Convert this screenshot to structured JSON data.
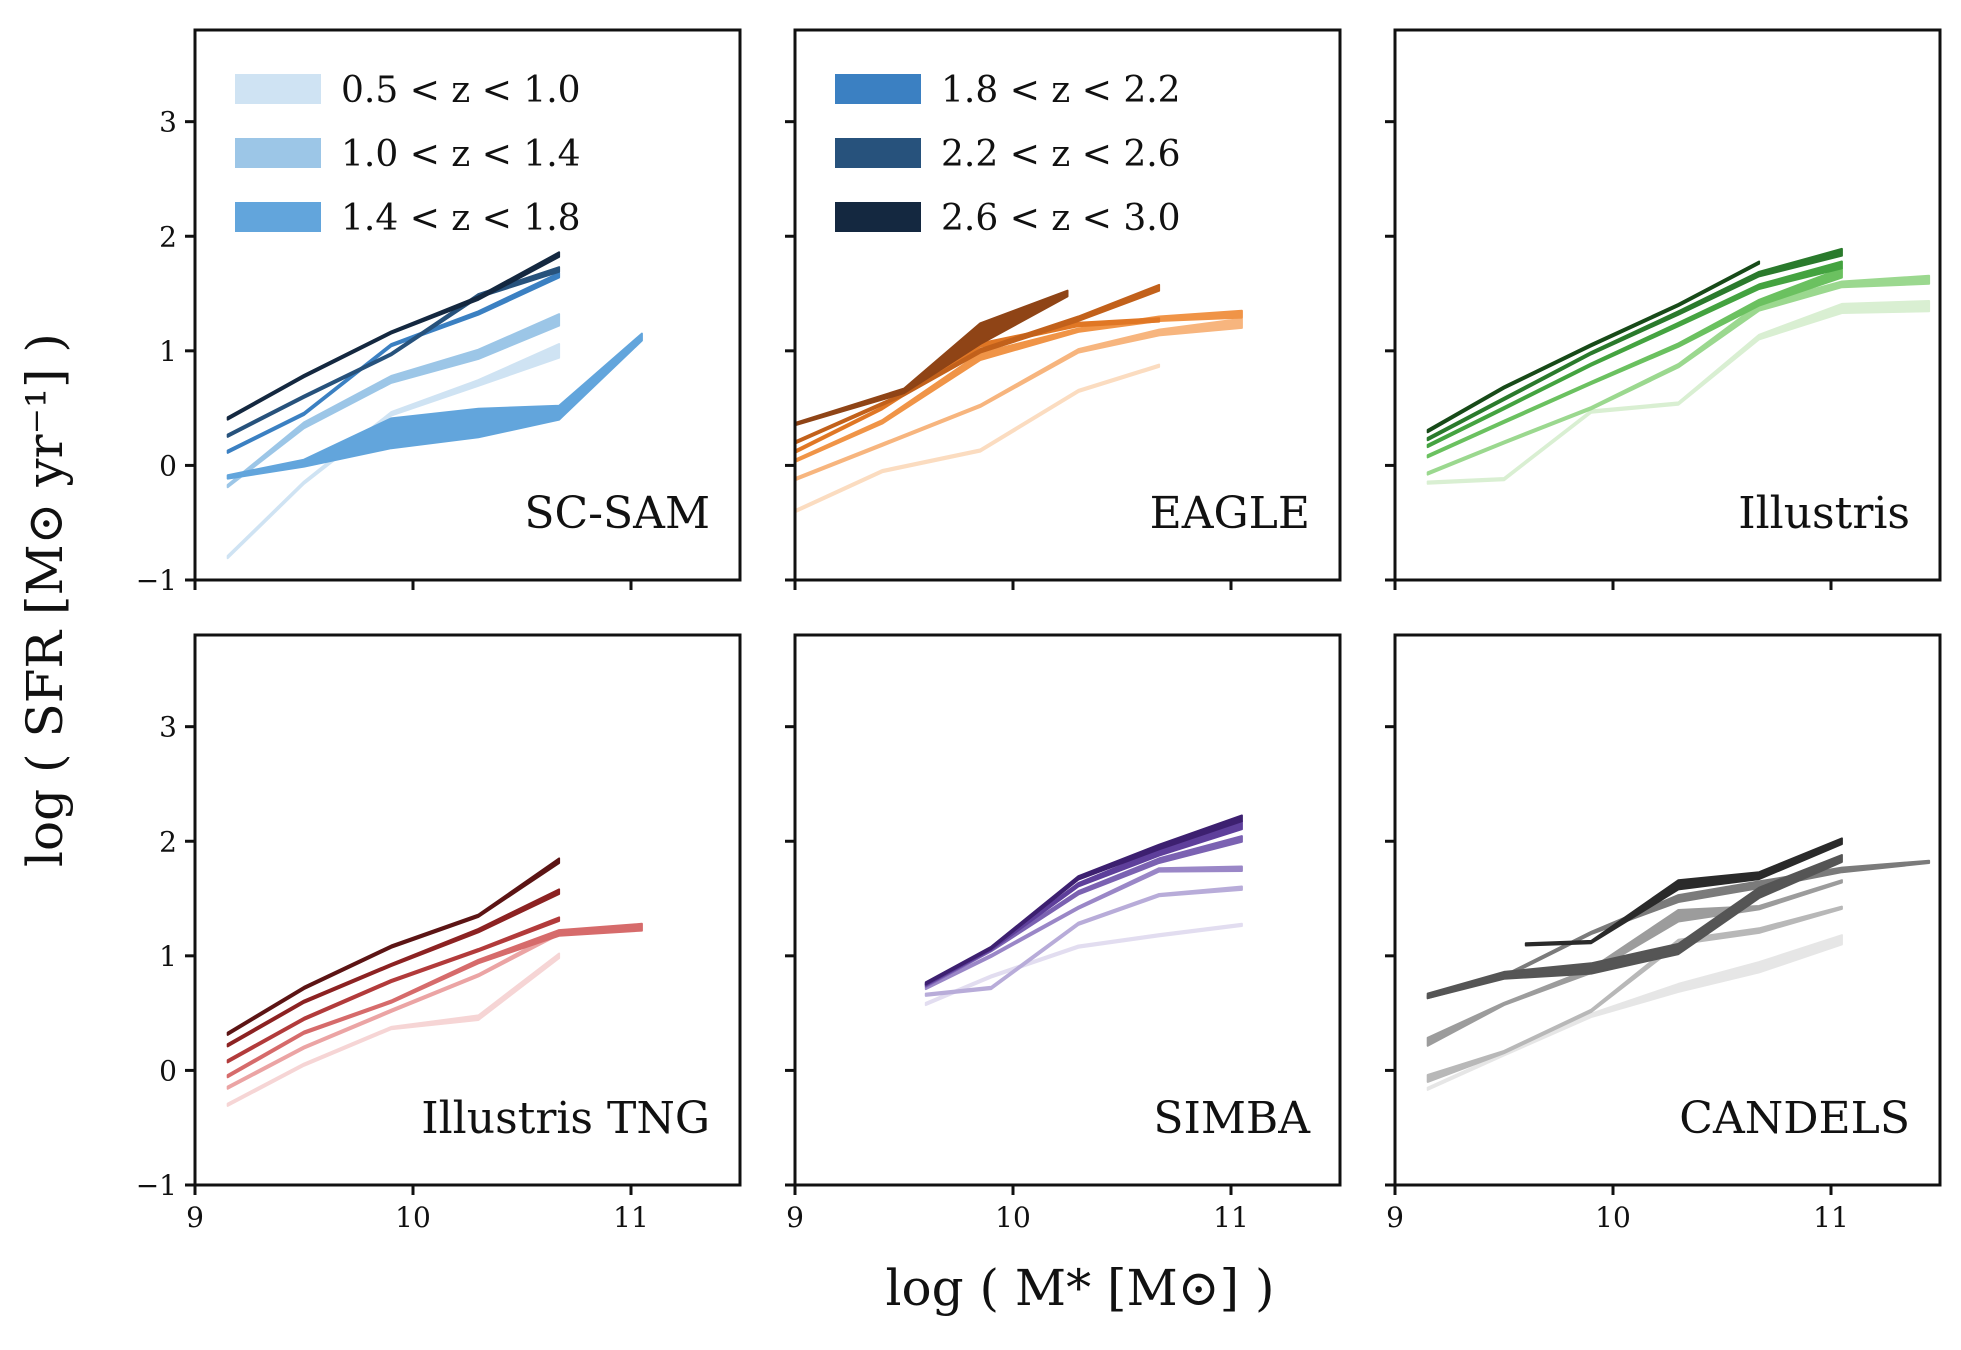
{
  "figure": {
    "xlabel": "log ( M* [M⊙] )",
    "ylabel": "log ( SFR [M⊙ yr⁻¹] )"
  },
  "legend": {
    "left": [
      {
        "label": "0.5 < z < 1.0",
        "color": "#cfe3f3"
      },
      {
        "label": "1.0 < z < 1.4",
        "color": "#9cc6e7"
      },
      {
        "label": "1.4 < z < 1.8",
        "color": "#62a5dc"
      }
    ],
    "right": [
      {
        "label": "1.8 < z < 2.2",
        "color": "#3b80c2"
      },
      {
        "label": "2.2 < z < 2.6",
        "color": "#27527c"
      },
      {
        "label": "2.6 < z < 3.0",
        "color": "#142840"
      }
    ]
  },
  "chart_data": [
    {
      "type": "line",
      "title": "SC-SAM",
      "xlabel": "",
      "ylabel": "log ( SFR [M⊙ yr⁻¹] )",
      "xlim": [
        9,
        11.5
      ],
      "ylim": [
        -1,
        3.8
      ],
      "xticks": [
        "9",
        "10",
        "11"
      ],
      "yticks": [
        "−1",
        "0",
        "1",
        "2",
        "3"
      ],
      "series": [
        {
          "name": "0.5 < z < 1.0",
          "color": "#cfe3f3",
          "x": [
            9.15,
            9.5,
            9.9,
            10.3,
            10.67
          ],
          "y": [
            -0.8,
            -0.15,
            0.45,
            0.72,
            1.0
          ],
          "width": [
            0.02,
            0.02,
            0.03,
            0.05,
            0.12
          ]
        },
        {
          "name": "1.0 < z < 1.4",
          "color": "#9cc6e7",
          "x": [
            9.15,
            9.5,
            9.9,
            10.3,
            10.67
          ],
          "y": [
            -0.18,
            0.35,
            0.75,
            0.97,
            1.27
          ],
          "width": [
            0.02,
            0.05,
            0.06,
            0.08,
            0.1
          ]
        },
        {
          "name": "1.4 < z < 1.8",
          "color": "#62a5dc",
          "x": [
            9.15,
            9.5,
            9.9,
            10.3,
            10.67,
            11.05
          ],
          "y": [
            -0.1,
            0.02,
            0.28,
            0.37,
            0.46,
            1.12
          ],
          "width": [
            0.03,
            0.06,
            0.26,
            0.25,
            0.12,
            0.06
          ]
        },
        {
          "name": "1.8 < z < 2.2",
          "color": "#3b80c2",
          "x": [
            9.15,
            9.5,
            9.9,
            10.3,
            10.67
          ],
          "y": [
            0.12,
            0.45,
            1.05,
            1.33,
            1.66
          ],
          "width": [
            0.02,
            0.02,
            0.02,
            0.03,
            0.04
          ]
        },
        {
          "name": "2.2 < z < 2.6",
          "color": "#27527c",
          "x": [
            9.15,
            9.5,
            9.9,
            10.3,
            10.67
          ],
          "y": [
            0.26,
            0.6,
            0.97,
            1.48,
            1.71
          ],
          "width": [
            0.02,
            0.02,
            0.02,
            0.03,
            0.04
          ]
        },
        {
          "name": "2.6 < z < 3.0",
          "color": "#142840",
          "x": [
            9.15,
            9.5,
            9.9,
            10.3,
            10.67
          ],
          "y": [
            0.41,
            0.78,
            1.16,
            1.46,
            1.84
          ],
          "width": [
            0.02,
            0.02,
            0.02,
            0.03,
            0.04
          ]
        }
      ]
    },
    {
      "type": "line",
      "title": "EAGLE",
      "xlabel": "",
      "ylabel": "",
      "xlim": [
        9,
        11.5
      ],
      "ylim": [
        -1,
        3.8
      ],
      "xticks": [
        "9",
        "10",
        "11"
      ],
      "yticks": [
        "−1",
        "0",
        "1",
        "2",
        "3"
      ],
      "series": [
        {
          "name": "0.5 < z < 1.0",
          "color": "#fbdcc0",
          "x": [
            9.0,
            9.4,
            9.85,
            10.3,
            10.67
          ],
          "y": [
            -0.4,
            -0.05,
            0.13,
            0.65,
            0.87
          ],
          "width": [
            0.02,
            0.02,
            0.02,
            0.02,
            0.02
          ]
        },
        {
          "name": "1.0 < z < 1.4",
          "color": "#f7b57e",
          "x": [
            9.0,
            9.4,
            9.85,
            10.3,
            10.67,
            11.05
          ],
          "y": [
            -0.12,
            0.18,
            0.52,
            1.0,
            1.16,
            1.24
          ],
          "width": [
            0.02,
            0.02,
            0.02,
            0.03,
            0.05,
            0.08
          ]
        },
        {
          "name": "1.4 < z < 1.8",
          "color": "#f09447",
          "x": [
            9.0,
            9.4,
            9.85,
            10.3,
            10.67,
            11.05
          ],
          "y": [
            0.04,
            0.38,
            0.95,
            1.18,
            1.28,
            1.32
          ],
          "width": [
            0.02,
            0.03,
            0.06,
            0.03,
            0.04,
            0.06
          ]
        },
        {
          "name": "1.8 < z < 2.2",
          "color": "#e07725",
          "x": [
            9.0,
            9.4,
            9.85,
            10.3,
            10.67
          ],
          "y": [
            0.12,
            0.5,
            1.05,
            1.23,
            1.27
          ],
          "width": [
            0.02,
            0.02,
            0.03,
            0.03,
            0.03
          ]
        },
        {
          "name": "2.2 < z < 2.6",
          "color": "#c2611b",
          "x": [
            9.0,
            9.5,
            9.85,
            10.3,
            10.67
          ],
          "y": [
            0.2,
            0.62,
            1.0,
            1.28,
            1.55
          ],
          "width": [
            0.02,
            0.02,
            0.03,
            0.04,
            0.05
          ]
        },
        {
          "name": "2.6 < z < 3.0",
          "color": "#8f4416",
          "x": [
            9.0,
            9.5,
            9.85,
            10.25
          ],
          "y": [
            0.36,
            0.65,
            1.15,
            1.5
          ],
          "width": [
            0.02,
            0.04,
            0.18,
            0.05
          ]
        }
      ]
    },
    {
      "type": "line",
      "title": "Illustris",
      "xlabel": "",
      "ylabel": "",
      "xlim": [
        9,
        11.5
      ],
      "ylim": [
        -1,
        3.8
      ],
      "xticks": [
        "9",
        "10",
        "11"
      ],
      "yticks": [
        "−1",
        "0",
        "1",
        "2",
        "3"
      ],
      "series": [
        {
          "name": "0.5 < z < 1.0",
          "color": "#d9efd2",
          "x": [
            9.15,
            9.5,
            9.9,
            10.3,
            10.67,
            11.05,
            11.45
          ],
          "y": [
            -0.15,
            -0.12,
            0.47,
            0.54,
            1.12,
            1.37,
            1.39
          ],
          "width": [
            0.02,
            0.02,
            0.02,
            0.02,
            0.04,
            0.08,
            0.09
          ]
        },
        {
          "name": "1.0 < z < 1.4",
          "color": "#9bd88f",
          "x": [
            9.15,
            9.5,
            9.9,
            10.3,
            10.67,
            11.05,
            11.45
          ],
          "y": [
            -0.07,
            0.2,
            0.5,
            0.87,
            1.38,
            1.58,
            1.62
          ],
          "width": [
            0.02,
            0.02,
            0.02,
            0.03,
            0.06,
            0.05,
            0.07
          ]
        },
        {
          "name": "1.4 < z < 1.8",
          "color": "#6bc160",
          "x": [
            9.15,
            9.5,
            9.9,
            10.3,
            10.67,
            11.05
          ],
          "y": [
            0.08,
            0.38,
            0.72,
            1.05,
            1.42,
            1.68
          ],
          "width": [
            0.02,
            0.02,
            0.02,
            0.03,
            0.05,
            0.08
          ]
        },
        {
          "name": "1.8 < z < 2.2",
          "color": "#44a340",
          "x": [
            9.15,
            9.5,
            9.9,
            10.3,
            10.67,
            11.05
          ],
          "y": [
            0.17,
            0.5,
            0.88,
            1.23,
            1.56,
            1.75
          ],
          "width": [
            0.02,
            0.02,
            0.02,
            0.03,
            0.04,
            0.06
          ]
        },
        {
          "name": "2.2 < z < 2.6",
          "color": "#2a7a2c",
          "x": [
            9.15,
            9.5,
            9.9,
            10.3,
            10.67,
            11.05
          ],
          "y": [
            0.23,
            0.58,
            0.98,
            1.33,
            1.67,
            1.86
          ],
          "width": [
            0.02,
            0.02,
            0.02,
            0.03,
            0.04,
            0.06
          ]
        },
        {
          "name": "2.6 < z < 3.0",
          "color": "#174a18",
          "x": [
            9.15,
            9.5,
            9.9,
            10.3,
            10.67
          ],
          "y": [
            0.3,
            0.68,
            1.05,
            1.4,
            1.77
          ],
          "width": [
            0.02,
            0.02,
            0.02,
            0.02,
            0.02
          ]
        }
      ]
    },
    {
      "type": "line",
      "title": "Illustris TNG",
      "xlabel": "",
      "ylabel": "log ( SFR [M⊙ yr⁻¹] )",
      "xlim": [
        9,
        11.5
      ],
      "ylim": [
        -1,
        3.8
      ],
      "xticks": [
        "9",
        "10",
        "11"
      ],
      "yticks": [
        "−1",
        "0",
        "1",
        "2",
        "3"
      ],
      "series": [
        {
          "name": "0.5 < z < 1.0",
          "color": "#f6d5d5",
          "x": [
            9.15,
            9.5,
            9.9,
            10.3,
            10.67
          ],
          "y": [
            -0.3,
            0.05,
            0.37,
            0.46,
            1.0
          ],
          "width": [
            0.02,
            0.02,
            0.02,
            0.04,
            0.04
          ]
        },
        {
          "name": "1.0 < z < 1.4",
          "color": "#eba4a4",
          "x": [
            9.15,
            9.5,
            9.9,
            10.3,
            10.67
          ],
          "y": [
            -0.15,
            0.2,
            0.52,
            0.83,
            1.2
          ],
          "width": [
            0.02,
            0.02,
            0.02,
            0.02,
            0.03
          ]
        },
        {
          "name": "1.4 < z < 1.8",
          "color": "#d66b6b",
          "x": [
            9.15,
            9.5,
            9.9,
            10.3,
            10.67,
            11.05
          ],
          "y": [
            -0.05,
            0.33,
            0.6,
            0.95,
            1.2,
            1.25
          ],
          "width": [
            0.02,
            0.02,
            0.02,
            0.03,
            0.05,
            0.06
          ]
        },
        {
          "name": "1.8 < z < 2.2",
          "color": "#b23b3b",
          "x": [
            9.15,
            9.5,
            9.9,
            10.3,
            10.67
          ],
          "y": [
            0.08,
            0.45,
            0.78,
            1.05,
            1.32
          ],
          "width": [
            0.02,
            0.02,
            0.02,
            0.02,
            0.03
          ]
        },
        {
          "name": "2.2 < z < 2.6",
          "color": "#8c2222",
          "x": [
            9.15,
            9.5,
            9.9,
            10.3,
            10.67
          ],
          "y": [
            0.22,
            0.6,
            0.92,
            1.22,
            1.56
          ],
          "width": [
            0.02,
            0.02,
            0.02,
            0.03,
            0.04
          ]
        },
        {
          "name": "2.6 < z < 3.0",
          "color": "#5c1414",
          "x": [
            9.15,
            9.5,
            9.9,
            10.3,
            10.67
          ],
          "y": [
            0.32,
            0.72,
            1.08,
            1.35,
            1.83
          ],
          "width": [
            0.02,
            0.02,
            0.02,
            0.02,
            0.04
          ]
        }
      ]
    },
    {
      "type": "line",
      "title": "SIMBA",
      "xlabel": "log ( M* [M⊙] )",
      "ylabel": "",
      "xlim": [
        9,
        11.5
      ],
      "ylim": [
        -1,
        3.8
      ],
      "xticks": [
        "9",
        "10",
        "11"
      ],
      "yticks": [
        "−1",
        "0",
        "1",
        "2",
        "3"
      ],
      "series": [
        {
          "name": "0.5 < z < 1.0",
          "color": "#e2ddf0",
          "x": [
            9.6,
            9.9,
            10.3,
            10.67,
            11.05
          ],
          "y": [
            0.58,
            0.82,
            1.08,
            1.18,
            1.27
          ],
          "width": [
            0.02,
            0.02,
            0.02,
            0.02,
            0.02
          ]
        },
        {
          "name": "1.0 < z < 1.4",
          "color": "#b8acd9",
          "x": [
            9.6,
            9.9,
            10.3,
            10.67,
            11.05
          ],
          "y": [
            0.66,
            0.72,
            1.28,
            1.53,
            1.59
          ],
          "width": [
            0.02,
            0.02,
            0.02,
            0.02,
            0.03
          ]
        },
        {
          "name": "1.4 < z < 1.8",
          "color": "#9a87c7",
          "x": [
            9.6,
            9.9,
            10.3,
            10.67,
            11.05
          ],
          "y": [
            0.72,
            1.0,
            1.42,
            1.75,
            1.76
          ],
          "width": [
            0.02,
            0.02,
            0.02,
            0.03,
            0.04
          ]
        },
        {
          "name": "1.8 < z < 2.2",
          "color": "#7b62b2",
          "x": [
            9.6,
            9.9,
            10.3,
            10.67,
            11.05
          ],
          "y": [
            0.74,
            1.05,
            1.55,
            1.83,
            2.02
          ],
          "width": [
            0.02,
            0.02,
            0.03,
            0.04,
            0.05
          ]
        },
        {
          "name": "2.2 < z < 2.6",
          "color": "#5e3f9b",
          "x": [
            9.6,
            9.9,
            10.3,
            10.67,
            11.05
          ],
          "y": [
            0.75,
            1.06,
            1.62,
            1.9,
            2.14
          ],
          "width": [
            0.02,
            0.02,
            0.03,
            0.05,
            0.07
          ]
        },
        {
          "name": "2.6 < z < 3.0",
          "color": "#3d2070",
          "x": [
            9.6,
            9.9,
            10.3,
            10.67,
            11.05
          ],
          "y": [
            0.76,
            1.07,
            1.68,
            1.95,
            2.2
          ],
          "width": [
            0.02,
            0.02,
            0.03,
            0.04,
            0.05
          ]
        }
      ]
    },
    {
      "type": "line",
      "title": "CANDELS",
      "xlabel": "",
      "ylabel": "",
      "xlim": [
        9,
        11.5
      ],
      "ylim": [
        -1,
        3.8
      ],
      "xticks": [
        "9",
        "10",
        "11"
      ],
      "yticks": [
        "−1",
        "0",
        "1",
        "2",
        "3"
      ],
      "series": [
        {
          "name": "0.5 < z < 1.0",
          "color": "#e6e6e6",
          "x": [
            9.15,
            9.5,
            9.9,
            10.3,
            10.67,
            11.05
          ],
          "y": [
            -0.16,
            0.14,
            0.48,
            0.72,
            0.9,
            1.14
          ],
          "width": [
            0.02,
            0.02,
            0.03,
            0.07,
            0.09,
            0.08
          ]
        },
        {
          "name": "1.0 < z < 1.4",
          "color": "#b8b8b8",
          "x": [
            9.15,
            9.5,
            9.9,
            10.3,
            10.67,
            11.05
          ],
          "y": [
            -0.07,
            0.16,
            0.52,
            1.12,
            1.22,
            1.42
          ],
          "width": [
            0.06,
            0.02,
            0.02,
            0.04,
            0.04,
            0.02
          ]
        },
        {
          "name": "1.4 < z < 1.8",
          "color": "#9c9c9c",
          "x": [
            9.15,
            9.5,
            9.9,
            10.3,
            10.67,
            11.05
          ],
          "y": [
            0.25,
            0.58,
            0.87,
            1.35,
            1.42,
            1.65
          ],
          "width": [
            0.07,
            0.02,
            0.04,
            0.1,
            0.03,
            0.02
          ]
        },
        {
          "name": "1.8 < z < 2.2",
          "color": "#7b7b7b",
          "x": [
            9.15,
            9.5,
            9.9,
            10.3,
            10.67,
            11.05,
            11.45
          ],
          "y": [
            0.64,
            0.82,
            1.2,
            1.5,
            1.62,
            1.75,
            1.82
          ],
          "width": [
            0.02,
            0.02,
            0.02,
            0.06,
            0.06,
            0.04,
            0.02
          ]
        },
        {
          "name": "2.2 < z < 2.6",
          "color": "#555555",
          "x": [
            9.15,
            9.5,
            9.9,
            10.3,
            10.67,
            11.05
          ],
          "y": [
            0.65,
            0.83,
            0.89,
            1.06,
            1.55,
            1.85
          ],
          "width": [
            0.04,
            0.06,
            0.09,
            0.09,
            0.09,
            0.06
          ]
        },
        {
          "name": "2.6 < z < 3.0",
          "color": "#2a2a2a",
          "x": [
            9.6,
            9.9,
            10.3,
            10.67,
            11.05
          ],
          "y": [
            1.1,
            1.12,
            1.62,
            1.7,
            2.0
          ],
          "width": [
            0.02,
            0.02,
            0.08,
            0.06,
            0.05
          ]
        }
      ]
    }
  ]
}
